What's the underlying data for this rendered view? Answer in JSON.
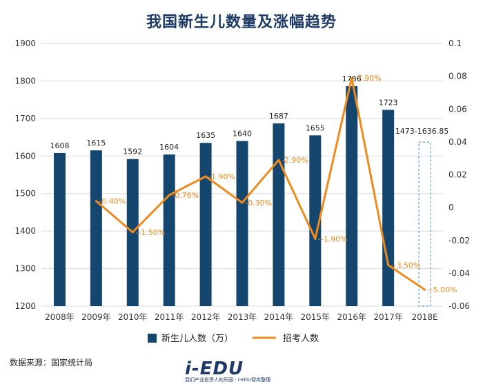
{
  "chart_data": {
    "type": "bar",
    "title": "我国新生儿数量及涨幅趋势",
    "categories": [
      "2008年",
      "2009年",
      "2010年",
      "2011年",
      "2012年",
      "2013年",
      "2014年",
      "2015年",
      "2016年",
      "2017年",
      "2018E"
    ],
    "y_left": {
      "min": 1200,
      "max": 1900,
      "ticks": [
        1200,
        1300,
        1400,
        1500,
        1600,
        1700,
        1800,
        1900
      ]
    },
    "y_right": {
      "min": -0.06,
      "max": 0.1,
      "ticks": [
        "0.1",
        "0.08",
        "0.06",
        "0.04",
        "0.02",
        "0",
        "-0.02",
        "-0.04",
        "-0.06"
      ]
    },
    "series": [
      {
        "name": "新生儿人数（万）",
        "type": "bar",
        "axis": "left",
        "color": "#14466e",
        "values": [
          1608,
          1615,
          1592,
          1604,
          1635,
          1640,
          1687,
          1655,
          1786,
          1723,
          null
        ],
        "labels": [
          "1608",
          "1615",
          "1592",
          "1604",
          "1635",
          "1640",
          "1687",
          "1655",
          "1786",
          "1723",
          ""
        ]
      },
      {
        "name": "招考人数",
        "type": "line",
        "axis": "right",
        "color": "#ef8a1c",
        "values": [
          null,
          0.004,
          -0.015,
          0.0076,
          0.019,
          0.003,
          0.029,
          -0.019,
          0.079,
          -0.035,
          -0.05
        ],
        "labels": [
          "",
          "0.40%",
          "-1.50%",
          "0.76%",
          "1.90%",
          "0.30%",
          "2.90%",
          "-1.90%",
          "7.90%",
          "-3.50%",
          "-5.00%"
        ]
      }
    ],
    "estimate": {
      "category": "2018E",
      "label": "1473-1636.85",
      "range": [
        1473,
        1636.85
      ],
      "style": "dashed"
    },
    "legend_position": "bottom",
    "grid": "horizontal"
  },
  "source_text": "数据来源：国家统计局",
  "brand": {
    "logo": "i-EDU",
    "tagline": "我们产业投资人的乐园 · i-EDU智库整理"
  }
}
